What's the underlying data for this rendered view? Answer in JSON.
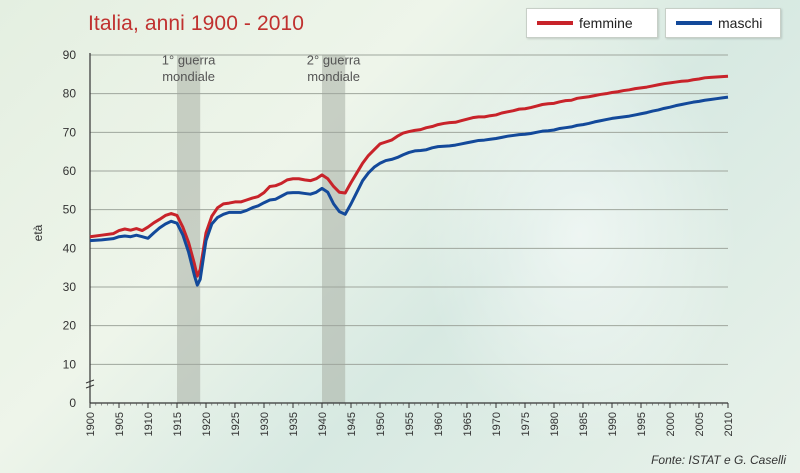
{
  "title": "Italia, anni 1900 - 2010",
  "source": "Fonte: ISTAT e G. Caselli",
  "colors": {
    "femmine": "#c8232a",
    "maschi": "#13499a",
    "war_band": "#a7aea4"
  },
  "chart_data": {
    "type": "line",
    "title": "Italia, anni 1900 - 2010",
    "xlabel": "",
    "ylabel": "età",
    "xlim": [
      1900,
      2010
    ],
    "ylim": [
      0,
      90
    ],
    "y_ticks": [
      0,
      10,
      20,
      30,
      40,
      50,
      60,
      70,
      80,
      90
    ],
    "x_ticks": [
      1900,
      1905,
      1910,
      1915,
      1920,
      1925,
      1930,
      1935,
      1940,
      1945,
      1950,
      1955,
      1960,
      1965,
      1970,
      1975,
      1980,
      1985,
      1990,
      1995,
      2000,
      2005,
      2010
    ],
    "grid": true,
    "axis_break": true,
    "legend_position": "top-right",
    "annotations": [
      {
        "line1": "1° guerra",
        "line2": "mondiale",
        "from": 1915,
        "to": 1919
      },
      {
        "line1": "2° guerra",
        "line2": "mondiale",
        "from": 1940,
        "to": 1944
      }
    ],
    "series": [
      {
        "name": "femmine",
        "color": "#c8232a",
        "points": [
          [
            1900,
            43
          ],
          [
            1902,
            43.4
          ],
          [
            1904,
            43.8
          ],
          [
            1905,
            44.6
          ],
          [
            1906,
            45
          ],
          [
            1907,
            44.7
          ],
          [
            1908,
            45.1
          ],
          [
            1909,
            44.6
          ],
          [
            1910,
            45.5
          ],
          [
            1911,
            46.6
          ],
          [
            1912,
            47.5
          ],
          [
            1913,
            48.5
          ],
          [
            1914,
            49
          ],
          [
            1915,
            48.5
          ],
          [
            1916,
            45.5
          ],
          [
            1917,
            41.5
          ],
          [
            1918,
            36
          ],
          [
            1918.5,
            32.8
          ],
          [
            1919,
            34.5
          ],
          [
            1920,
            44
          ],
          [
            1921,
            48.3
          ],
          [
            1922,
            50.5
          ],
          [
            1923,
            51.5
          ],
          [
            1924,
            51.7
          ],
          [
            1925,
            52
          ],
          [
            1926,
            52
          ],
          [
            1927,
            52.5
          ],
          [
            1928,
            53
          ],
          [
            1929,
            53.4
          ],
          [
            1930,
            54.4
          ],
          [
            1931,
            56
          ],
          [
            1932,
            56.2
          ],
          [
            1933,
            56.8
          ],
          [
            1934,
            57.7
          ],
          [
            1935,
            58
          ],
          [
            1936,
            58
          ],
          [
            1937,
            57.7
          ],
          [
            1938,
            57.5
          ],
          [
            1939,
            58
          ],
          [
            1940,
            59
          ],
          [
            1941,
            58
          ],
          [
            1942,
            56
          ],
          [
            1943,
            54.5
          ],
          [
            1944,
            54.3
          ],
          [
            1945,
            57
          ],
          [
            1946,
            59.5
          ],
          [
            1947,
            62
          ],
          [
            1948,
            64
          ],
          [
            1949,
            65.5
          ],
          [
            1950,
            67
          ],
          [
            1951,
            67.5
          ],
          [
            1952,
            68
          ],
          [
            1953,
            69
          ],
          [
            1954,
            69.8
          ],
          [
            1955,
            70.2
          ],
          [
            1956,
            70.5
          ],
          [
            1957,
            70.7
          ],
          [
            1958,
            71.2
          ],
          [
            1959,
            71.5
          ],
          [
            1960,
            72
          ],
          [
            1961,
            72.3
          ],
          [
            1962,
            72.5
          ],
          [
            1963,
            72.6
          ],
          [
            1964,
            73
          ],
          [
            1965,
            73.4
          ],
          [
            1966,
            73.8
          ],
          [
            1967,
            74
          ],
          [
            1968,
            74
          ],
          [
            1969,
            74.3
          ],
          [
            1970,
            74.5
          ],
          [
            1971,
            75
          ],
          [
            1972,
            75.3
          ],
          [
            1973,
            75.6
          ],
          [
            1974,
            76
          ],
          [
            1975,
            76.1
          ],
          [
            1976,
            76.4
          ],
          [
            1977,
            76.8
          ],
          [
            1978,
            77.2
          ],
          [
            1979,
            77.4
          ],
          [
            1980,
            77.5
          ],
          [
            1981,
            77.9
          ],
          [
            1982,
            78.2
          ],
          [
            1983,
            78.3
          ],
          [
            1984,
            78.8
          ],
          [
            1985,
            79
          ],
          [
            1986,
            79.2
          ],
          [
            1987,
            79.5
          ],
          [
            1988,
            79.8
          ],
          [
            1989,
            80
          ],
          [
            1990,
            80.3
          ],
          [
            1991,
            80.5
          ],
          [
            1992,
            80.8
          ],
          [
            1993,
            81
          ],
          [
            1994,
            81.3
          ],
          [
            1995,
            81.5
          ],
          [
            1996,
            81.7
          ],
          [
            1997,
            82
          ],
          [
            1998,
            82.3
          ],
          [
            1999,
            82.6
          ],
          [
            2000,
            82.8
          ],
          [
            2001,
            83
          ],
          [
            2002,
            83.2
          ],
          [
            2003,
            83.3
          ],
          [
            2004,
            83.6
          ],
          [
            2005,
            83.8
          ],
          [
            2006,
            84.1
          ],
          [
            2007,
            84.2
          ],
          [
            2008,
            84.3
          ],
          [
            2009,
            84.4
          ],
          [
            2010,
            84.5
          ]
        ]
      },
      {
        "name": "maschi",
        "color": "#13499a",
        "points": [
          [
            1900,
            42
          ],
          [
            1902,
            42.2
          ],
          [
            1904,
            42.5
          ],
          [
            1905,
            43
          ],
          [
            1906,
            43.2
          ],
          [
            1907,
            43
          ],
          [
            1908,
            43.4
          ],
          [
            1909,
            43
          ],
          [
            1910,
            42.6
          ],
          [
            1911,
            44
          ],
          [
            1912,
            45.3
          ],
          [
            1913,
            46.3
          ],
          [
            1914,
            47
          ],
          [
            1915,
            46.5
          ],
          [
            1916,
            43.5
          ],
          [
            1917,
            39
          ],
          [
            1918,
            33
          ],
          [
            1918.5,
            30.5
          ],
          [
            1919,
            32
          ],
          [
            1920,
            42
          ],
          [
            1921,
            46.3
          ],
          [
            1922,
            48
          ],
          [
            1923,
            48.8
          ],
          [
            1924,
            49.3
          ],
          [
            1925,
            49.3
          ],
          [
            1926,
            49.3
          ],
          [
            1927,
            49.8
          ],
          [
            1928,
            50.5
          ],
          [
            1929,
            51
          ],
          [
            1930,
            51.8
          ],
          [
            1931,
            52.5
          ],
          [
            1932,
            52.7
          ],
          [
            1933,
            53.5
          ],
          [
            1934,
            54.3
          ],
          [
            1935,
            54.4
          ],
          [
            1936,
            54.4
          ],
          [
            1937,
            54.2
          ],
          [
            1938,
            54
          ],
          [
            1939,
            54.5
          ],
          [
            1940,
            55.5
          ],
          [
            1941,
            54.5
          ],
          [
            1942,
            51.5
          ],
          [
            1943,
            49.5
          ],
          [
            1944,
            48.8
          ],
          [
            1945,
            51.5
          ],
          [
            1946,
            54.5
          ],
          [
            1947,
            57.5
          ],
          [
            1948,
            59.5
          ],
          [
            1949,
            61
          ],
          [
            1950,
            62
          ],
          [
            1951,
            62.7
          ],
          [
            1952,
            63
          ],
          [
            1953,
            63.5
          ],
          [
            1954,
            64.2
          ],
          [
            1955,
            64.8
          ],
          [
            1956,
            65.2
          ],
          [
            1957,
            65.3
          ],
          [
            1958,
            65.5
          ],
          [
            1959,
            66
          ],
          [
            1960,
            66.3
          ],
          [
            1961,
            66.4
          ],
          [
            1962,
            66.5
          ],
          [
            1963,
            66.7
          ],
          [
            1964,
            67
          ],
          [
            1965,
            67.3
          ],
          [
            1966,
            67.6
          ],
          [
            1967,
            67.9
          ],
          [
            1968,
            68
          ],
          [
            1969,
            68.2
          ],
          [
            1970,
            68.4
          ],
          [
            1971,
            68.7
          ],
          [
            1972,
            69
          ],
          [
            1973,
            69.2
          ],
          [
            1974,
            69.4
          ],
          [
            1975,
            69.5
          ],
          [
            1976,
            69.7
          ],
          [
            1977,
            70
          ],
          [
            1978,
            70.3
          ],
          [
            1979,
            70.4
          ],
          [
            1980,
            70.6
          ],
          [
            1981,
            71
          ],
          [
            1982,
            71.2
          ],
          [
            1983,
            71.4
          ],
          [
            1984,
            71.8
          ],
          [
            1985,
            72
          ],
          [
            1986,
            72.3
          ],
          [
            1987,
            72.7
          ],
          [
            1988,
            73
          ],
          [
            1989,
            73.3
          ],
          [
            1990,
            73.6
          ],
          [
            1991,
            73.8
          ],
          [
            1992,
            74
          ],
          [
            1993,
            74.2
          ],
          [
            1994,
            74.5
          ],
          [
            1995,
            74.8
          ],
          [
            1996,
            75.1
          ],
          [
            1997,
            75.5
          ],
          [
            1998,
            75.8
          ],
          [
            1999,
            76.2
          ],
          [
            2000,
            76.5
          ],
          [
            2001,
            76.9
          ],
          [
            2002,
            77.2
          ],
          [
            2003,
            77.5
          ],
          [
            2004,
            77.8
          ],
          [
            2005,
            78
          ],
          [
            2006,
            78.3
          ],
          [
            2007,
            78.5
          ],
          [
            2008,
            78.7
          ],
          [
            2009,
            78.9
          ],
          [
            2010,
            79.1
          ]
        ]
      }
    ]
  }
}
